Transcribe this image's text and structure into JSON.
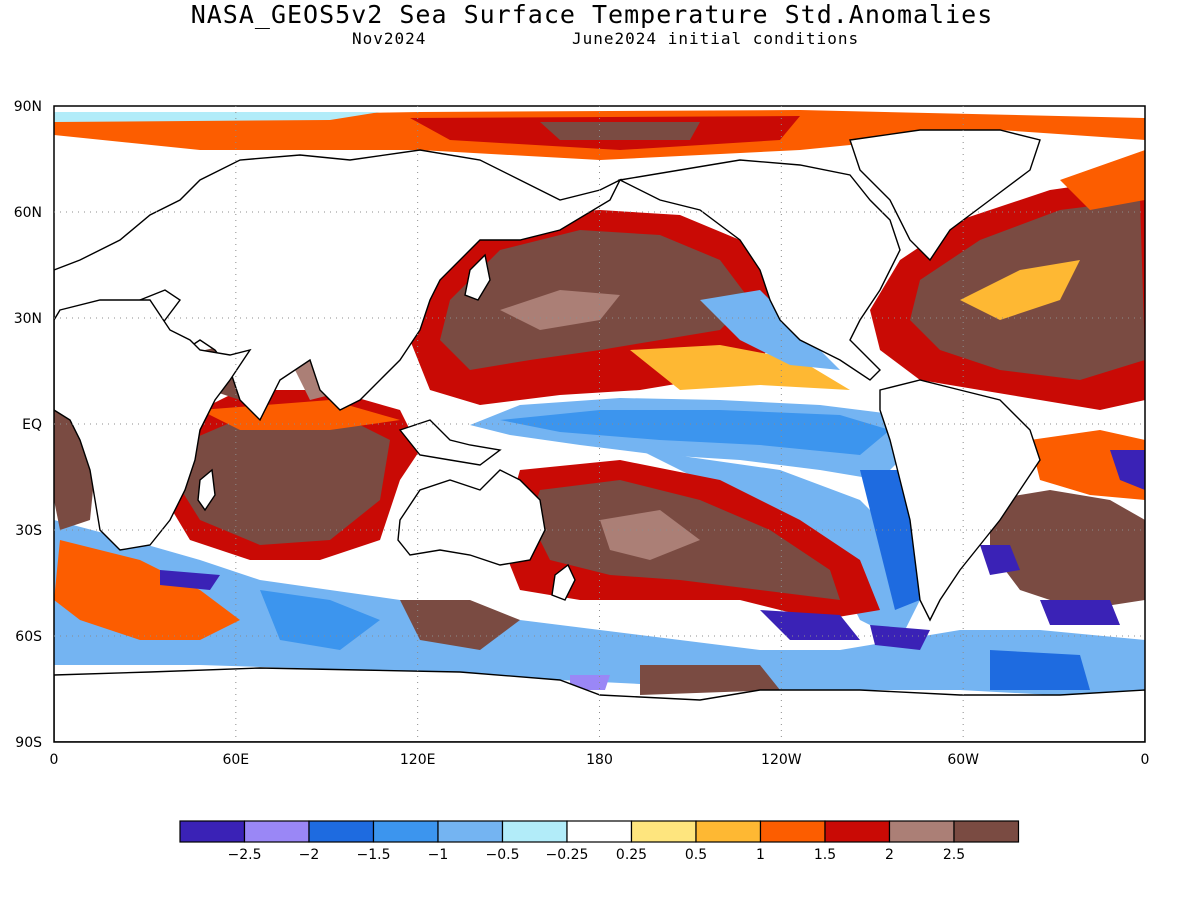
{
  "header": {
    "title": "NASA_GEOS5v2 Sea Surface Temperature Std.Anomalies",
    "subtitle_left": "Nov2024",
    "subtitle_right": "June2024 initial conditions"
  },
  "axes": {
    "lat_labels": [
      "90N",
      "60N",
      "30N",
      "EQ",
      "30S",
      "60S",
      "90S"
    ],
    "lon_labels": [
      "0",
      "60E",
      "120E",
      "180",
      "120W",
      "60W",
      "0"
    ],
    "gridlines": "dotted"
  },
  "legend": {
    "colors": [
      "#3a22b6",
      "#9a87f6",
      "#1e6be0",
      "#3c95ee",
      "#74b4f2",
      "#b2ecf9",
      "#ffffff",
      "#fee57e",
      "#feb833",
      "#fc5d00",
      "#c90a05",
      "#ab7f76",
      "#7a4b42"
    ],
    "labels": [
      "-2.5",
      "-2",
      "-1.5",
      "-1",
      "-0.5",
      "-0.25",
      "0.25",
      "0.5",
      "1",
      "1.5",
      "2",
      "2.5"
    ]
  },
  "palette": {
    "land": "#ffffff",
    "coast": "#000000",
    "neutral": "#ffffff"
  }
}
